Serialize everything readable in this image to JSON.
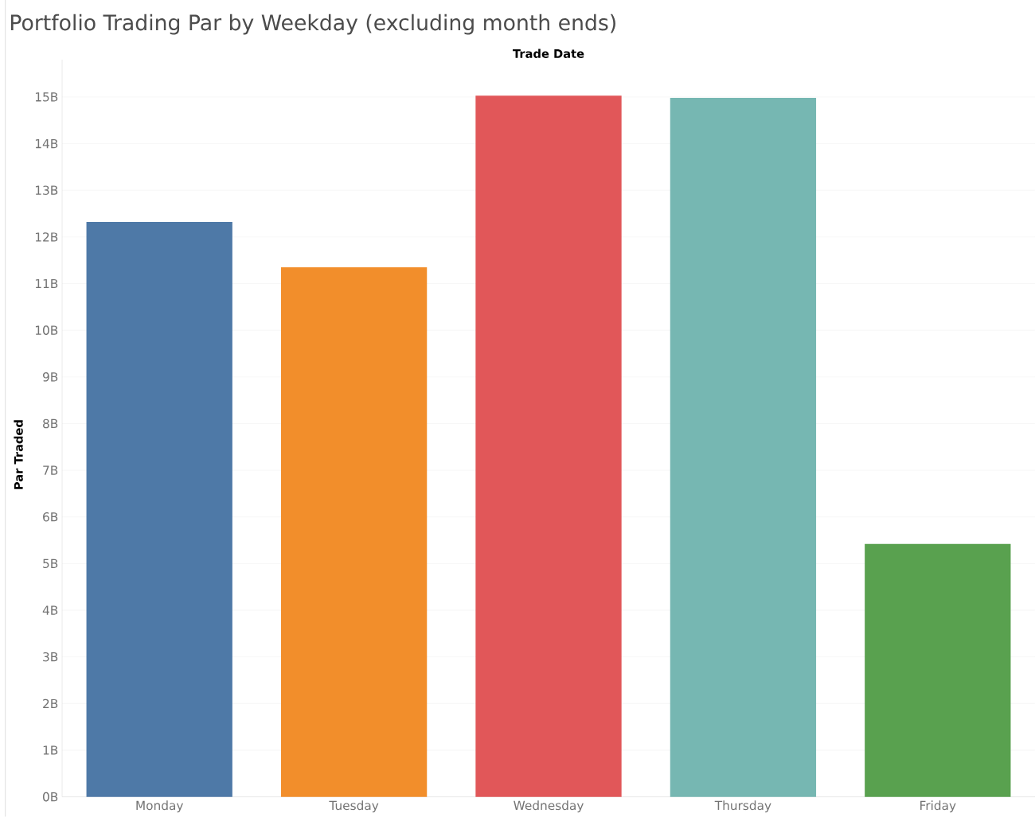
{
  "chart_data": {
    "type": "bar",
    "title": "Portfolio Trading Par by Weekday (excluding month ends)",
    "xlabel": "Trade Date",
    "ylabel": "Par Traded",
    "categories": [
      "Monday",
      "Tuesday",
      "Wednesday",
      "Thursday",
      "Friday"
    ],
    "values": [
      12.32,
      11.35,
      15.03,
      14.98,
      5.42
    ],
    "colors": [
      "#4e79a7",
      "#f28e2b",
      "#e15759",
      "#76b7b2",
      "#59a14f"
    ],
    "ylim": [
      0,
      15.8
    ],
    "yticks": [
      {
        "value": 0,
        "label": "0B"
      },
      {
        "value": 1,
        "label": "1B"
      },
      {
        "value": 2,
        "label": "2B"
      },
      {
        "value": 3,
        "label": "3B"
      },
      {
        "value": 4,
        "label": "4B"
      },
      {
        "value": 5,
        "label": "5B"
      },
      {
        "value": 6,
        "label": "6B"
      },
      {
        "value": 7,
        "label": "7B"
      },
      {
        "value": 8,
        "label": "8B"
      },
      {
        "value": 9,
        "label": "9B"
      },
      {
        "value": 10,
        "label": "10B"
      },
      {
        "value": 11,
        "label": "11B"
      },
      {
        "value": 12,
        "label": "12B"
      },
      {
        "value": 13,
        "label": "13B"
      },
      {
        "value": 14,
        "label": "14B"
      },
      {
        "value": 15,
        "label": "15B"
      }
    ],
    "grid": "y"
  }
}
